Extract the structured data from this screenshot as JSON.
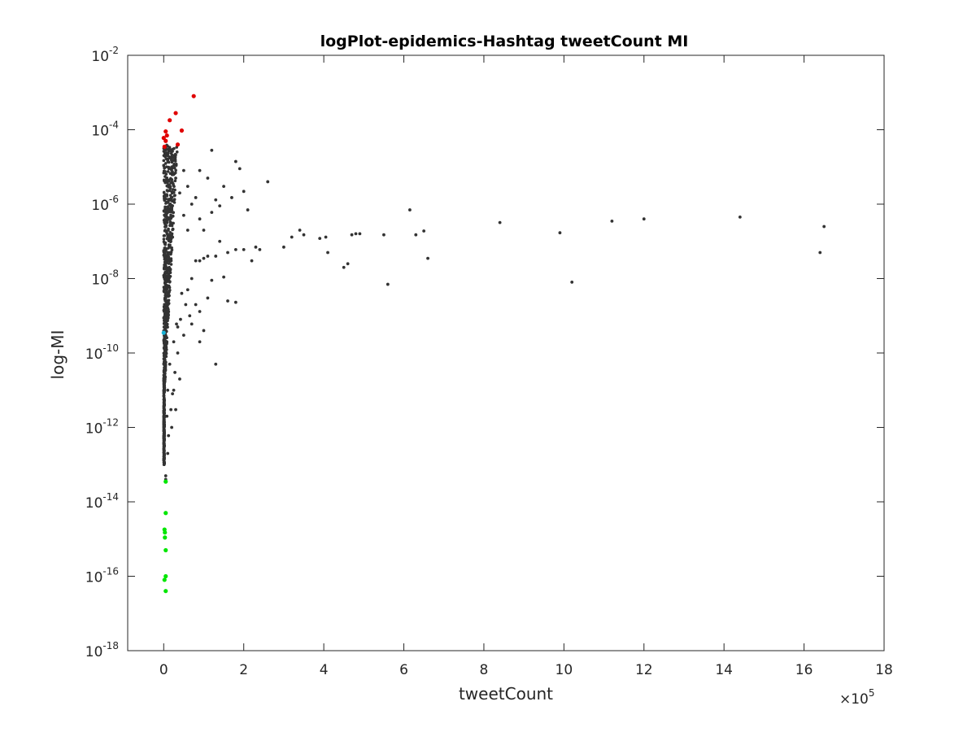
{
  "chart_data": {
    "type": "scatter",
    "title": "logPlot-epidemics-Hashtag tweetCount MI",
    "xlabel": "tweetCount",
    "ylabel": "log-MI",
    "x_multiplier_label": "×10",
    "x_multiplier_exponent": "5",
    "xlim": [
      -0.9,
      18
    ],
    "xscale": "linear",
    "x_tick_values": [
      0,
      2,
      4,
      6,
      8,
      10,
      12,
      14,
      16,
      18
    ],
    "ylim": [
      1e-18,
      0.01
    ],
    "yscale": "log",
    "y_tick_base": "10",
    "y_tick_exponents": [
      -18,
      -16,
      -14,
      -12,
      -10,
      -8,
      -6,
      -4,
      -2
    ],
    "grid": false,
    "legend": "none",
    "colors": {
      "main": "#333333",
      "high": "#e00000",
      "low": "#00e600",
      "highlight": "#19b2d6",
      "axis": "#262626"
    },
    "series": [
      {
        "color_key": "main",
        "points": [
          [
            0.9,
            8e-06
          ],
          [
            1.2,
            2.8e-05
          ],
          [
            1.8,
            1.4e-05
          ],
          [
            1.9,
            9e-06
          ],
          [
            2.6,
            4e-06
          ],
          [
            1.1,
            5e-06
          ],
          [
            1.5,
            3e-06
          ],
          [
            1.7,
            1.5e-06
          ],
          [
            2.0,
            2.2e-06
          ],
          [
            1.4,
            9e-07
          ],
          [
            1.2,
            6e-07
          ],
          [
            1.3,
            1.3e-06
          ],
          [
            2.1,
            7e-07
          ],
          [
            2.4,
            6e-08
          ],
          [
            2.2,
            3e-08
          ],
          [
            3.0,
            7e-08
          ],
          [
            3.2,
            1.3e-07
          ],
          [
            3.4,
            2e-07
          ],
          [
            3.5,
            1.5e-07
          ],
          [
            3.9,
            1.2e-07
          ],
          [
            4.05,
            1.3e-07
          ],
          [
            4.1,
            5e-08
          ],
          [
            4.5,
            2e-08
          ],
          [
            4.6,
            2.5e-08
          ],
          [
            4.7,
            1.5e-07
          ],
          [
            4.8,
            1.6e-07
          ],
          [
            4.9,
            1.6e-07
          ],
          [
            5.5,
            1.5e-07
          ],
          [
            5.6,
            7e-09
          ],
          [
            6.15,
            7e-07
          ],
          [
            6.3,
            1.5e-07
          ],
          [
            6.5,
            1.9e-07
          ],
          [
            6.6,
            3.5e-08
          ],
          [
            8.4,
            3.2e-07
          ],
          [
            9.9,
            1.7e-07
          ],
          [
            10.2,
            8e-09
          ],
          [
            11.2,
            3.5e-07
          ],
          [
            12.0,
            4e-07
          ],
          [
            14.4,
            4.5e-07
          ],
          [
            16.4,
            5e-08
          ],
          [
            16.5,
            2.5e-07
          ],
          [
            1.3,
            5e-11
          ],
          [
            0.8,
            2e-09
          ],
          [
            0.9,
            1.3e-09
          ],
          [
            1.0,
            4e-10
          ],
          [
            1.1,
            3e-09
          ],
          [
            1.6,
            2.5e-09
          ],
          [
            1.8,
            2.3e-09
          ],
          [
            1.5,
            1.1e-08
          ],
          [
            1.2,
            9e-09
          ],
          [
            0.7,
            6e-10
          ],
          [
            0.9,
            2e-10
          ],
          [
            0.05,
            5e-14
          ],
          [
            0.05,
            4e-14
          ],
          [
            0.1,
            2e-13
          ],
          [
            0.2,
            1e-12
          ],
          [
            0.3,
            3e-12
          ],
          [
            0.25,
            1e-11
          ],
          [
            0.4,
            2e-11
          ],
          [
            0.35,
            1e-10
          ],
          [
            0.5,
            3e-10
          ],
          [
            0.6,
            5e-09
          ],
          [
            0.7,
            1e-08
          ],
          [
            0.8,
            3e-08
          ],
          [
            0.9,
            3e-08
          ],
          [
            1.0,
            3.5e-08
          ],
          [
            1.1,
            4e-08
          ],
          [
            1.3,
            4e-08
          ],
          [
            1.6,
            5e-08
          ],
          [
            1.8,
            6e-08
          ],
          [
            2.0,
            6e-08
          ],
          [
            2.3,
            7e-08
          ],
          [
            0.6,
            2e-07
          ],
          [
            0.5,
            5e-07
          ],
          [
            0.7,
            1e-06
          ],
          [
            0.4,
            2e-06
          ],
          [
            0.3,
            5e-06
          ],
          [
            0.6,
            3e-06
          ],
          [
            0.8,
            1.5e-06
          ],
          [
            0.2,
            1e-05
          ],
          [
            0.1,
            2e-05
          ],
          [
            0.15,
            3e-05
          ],
          [
            0.5,
            8e-06
          ],
          [
            0.9,
            4e-07
          ],
          [
            1.0,
            2e-07
          ],
          [
            1.4,
            1e-07
          ],
          [
            0.45,
            4e-09
          ],
          [
            0.55,
            2e-09
          ],
          [
            0.65,
            1e-09
          ],
          [
            0.35,
            5e-10
          ],
          [
            0.25,
            2e-10
          ],
          [
            0.15,
            5e-11
          ],
          [
            0.1,
            1e-11
          ],
          [
            0.08,
            2e-12
          ],
          [
            0.12,
            6e-13
          ],
          [
            0.18,
            3e-12
          ],
          [
            0.22,
            8e-12
          ],
          [
            0.28,
            3e-11
          ],
          [
            0.32,
            6e-10
          ],
          [
            0.42,
            8e-10
          ]
        ]
      },
      {
        "color_key": "high",
        "points": [
          [
            0.75,
            0.0008
          ],
          [
            0.3,
            0.00028
          ],
          [
            0.15,
            0.00018
          ],
          [
            0.45,
            9.5e-05
          ],
          [
            0.05,
            9e-05
          ],
          [
            0.0,
            6e-05
          ],
          [
            0.35,
            4e-05
          ],
          [
            0.02,
            3.5e-05
          ],
          [
            0.05,
            5e-05
          ],
          [
            0.08,
            7e-05
          ]
        ]
      },
      {
        "color_key": "low",
        "points": [
          [
            0.05,
            3.5e-14
          ],
          [
            0.05,
            5e-15
          ],
          [
            0.02,
            1.8e-15
          ],
          [
            0.03,
            1.5e-15
          ],
          [
            0.03,
            1.1e-15
          ],
          [
            0.05,
            5e-16
          ],
          [
            0.05,
            1e-16
          ],
          [
            0.02,
            8e-17
          ],
          [
            0.05,
            4e-17
          ]
        ]
      },
      {
        "color_key": "highlight",
        "points": [
          [
            0.0,
            3.5e-10
          ]
        ]
      }
    ]
  }
}
